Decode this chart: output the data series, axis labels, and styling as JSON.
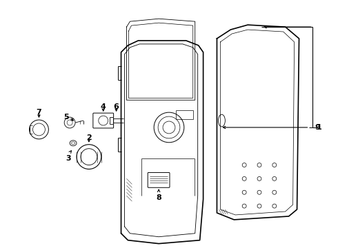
{
  "bg_color": "#ffffff",
  "lc": "#000000",
  "fig_width": 4.9,
  "fig_height": 3.6,
  "dpi": 100
}
